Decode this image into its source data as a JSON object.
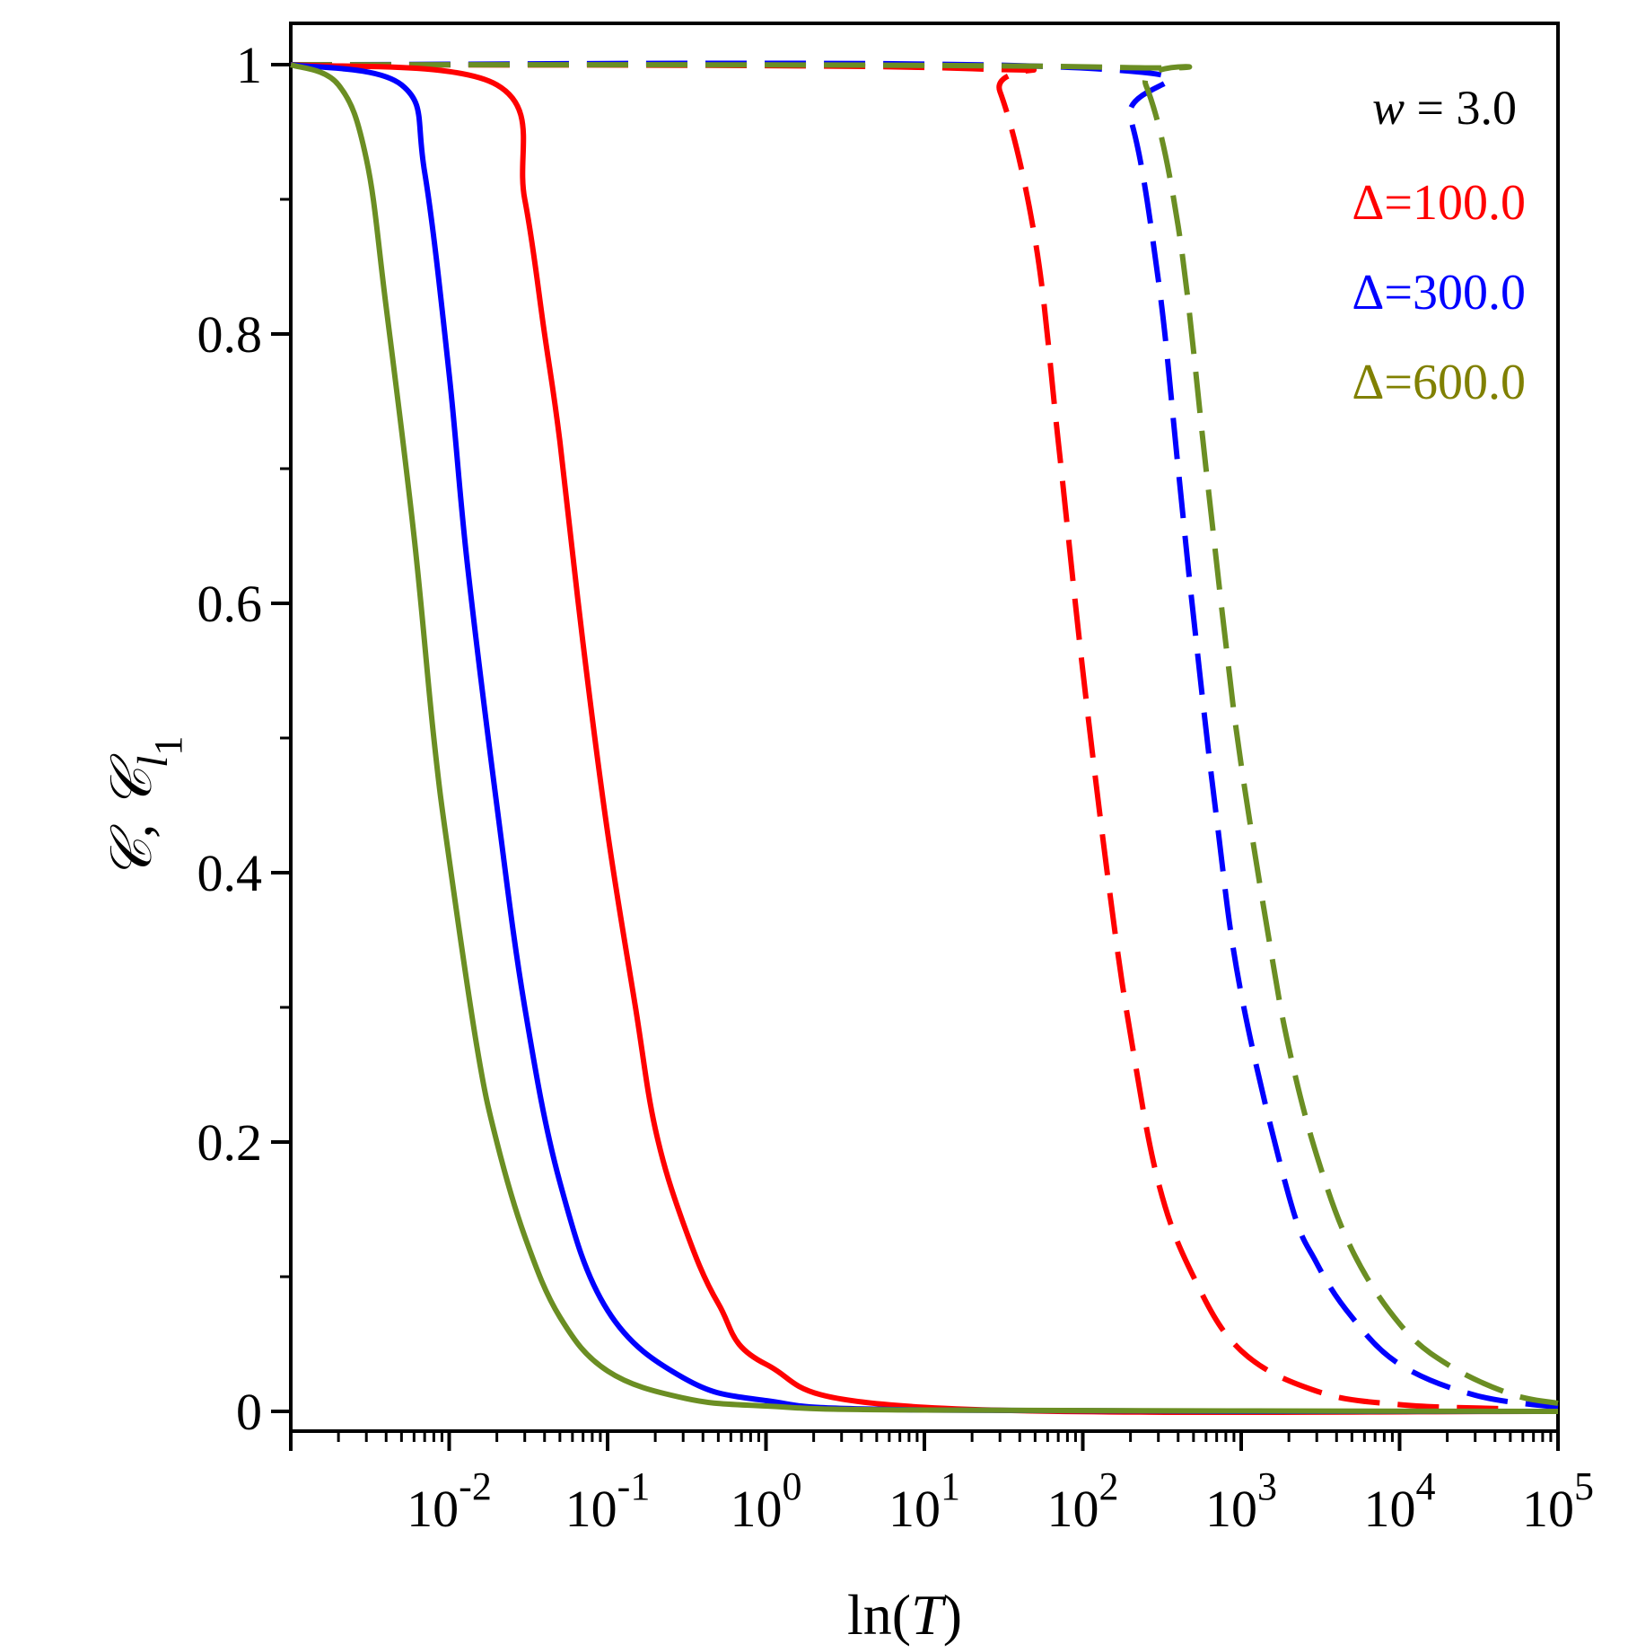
{
  "chart_data": {
    "type": "line",
    "title": "",
    "xlabel_prefix": "ln(",
    "xlabel_var": "T",
    "xlabel_suffix": ")",
    "ylabel_main": "𝒞, 𝒞",
    "ylabel_sub_l": "l",
    "ylabel_sub_1": "1",
    "xscale": "log",
    "xlim": [
      0.001,
      100000
    ],
    "ylim": [
      0,
      1
    ],
    "x_ticks": [
      {
        "base": "10",
        "exp": "-2",
        "value": 0.01
      },
      {
        "base": "10",
        "exp": "-1",
        "value": 0.1
      },
      {
        "base": "10",
        "exp": "0",
        "value": 1
      },
      {
        "base": "10",
        "exp": "1",
        "value": 10
      },
      {
        "base": "10",
        "exp": "2",
        "value": 100
      },
      {
        "base": "10",
        "exp": "3",
        "value": 1000
      },
      {
        "base": "10",
        "exp": "4",
        "value": 10000
      },
      {
        "base": "10",
        "exp": "5",
        "value": 100000
      }
    ],
    "y_ticks": [
      {
        "label": "0",
        "value": 0
      },
      {
        "label": "0.2",
        "value": 0.2
      },
      {
        "label": "0.4",
        "value": 0.4
      },
      {
        "label": "0.6",
        "value": 0.6
      },
      {
        "label": "0.8",
        "value": 0.8
      },
      {
        "label": "1",
        "value": 1
      }
    ],
    "y_minor_ticks": [
      0.1,
      0.3,
      0.5,
      0.7,
      0.9
    ],
    "annotation": {
      "var": "w",
      "eq": " = 3.0"
    },
    "legend_position": "top-right",
    "series": [
      {
        "name": "Δ=100.0",
        "curve": "𝒞",
        "color": "#ff0000",
        "style": "solid",
        "x": [
          0.001,
          0.02,
          0.03,
          0.04,
          0.05,
          0.07,
          0.1,
          0.15,
          0.2,
          0.3,
          0.5,
          1,
          10,
          100000
        ],
        "y": [
          1,
          0.985,
          0.9,
          0.8,
          0.72,
          0.57,
          0.43,
          0.3,
          0.21,
          0.14,
          0.08,
          0.035,
          0.003,
          0
        ]
      },
      {
        "name": "Δ=300.0",
        "curve": "𝒞",
        "color": "#0000ff",
        "style": "solid",
        "x": [
          0.001,
          0.005,
          0.007,
          0.01,
          0.013,
          0.02,
          0.03,
          0.05,
          0.1,
          0.3,
          1,
          10,
          100000
        ],
        "y": [
          1,
          0.985,
          0.92,
          0.77,
          0.63,
          0.45,
          0.3,
          0.17,
          0.075,
          0.025,
          0.008,
          0.001,
          0
        ]
      },
      {
        "name": "Δ=600.0",
        "curve": "𝒞",
        "color": "#6b8e23",
        "style": "solid",
        "x": [
          0.001,
          0.002,
          0.003,
          0.004,
          0.006,
          0.008,
          0.01,
          0.015,
          0.02,
          0.03,
          0.05,
          0.1,
          0.3,
          1,
          10,
          100000
        ],
        "y": [
          1,
          0.985,
          0.93,
          0.82,
          0.65,
          0.5,
          0.41,
          0.27,
          0.2,
          0.13,
          0.07,
          0.03,
          0.01,
          0.004,
          0.001,
          0
        ]
      },
      {
        "name": "Δ=100.0",
        "curve": "𝒞l1",
        "color": "#ff0000",
        "style": "dashed",
        "x": [
          0.001,
          20,
          30,
          50,
          70,
          100,
          150,
          200,
          300,
          500,
          1000,
          3000,
          10000,
          45000
        ],
        "y": [
          1,
          0.997,
          0.98,
          0.87,
          0.72,
          0.55,
          0.38,
          0.28,
          0.17,
          0.1,
          0.045,
          0.015,
          0.005,
          0.002
        ]
      },
      {
        "name": "Δ=300.0",
        "curve": "𝒞l1",
        "color": "#0000ff",
        "style": "dashed",
        "x": [
          0.001,
          120,
          200,
          300,
          400,
          500,
          700,
          1000,
          2000,
          3000,
          5000,
          10000,
          30000,
          100000
        ],
        "y": [
          1,
          0.997,
          0.96,
          0.84,
          0.7,
          0.59,
          0.44,
          0.31,
          0.16,
          0.11,
          0.07,
          0.035,
          0.012,
          0.003
        ]
      },
      {
        "name": "Δ=600.0",
        "curve": "𝒞l1",
        "color": "#6b8e23",
        "style": "dashed",
        "x": [
          0.001,
          160,
          250,
          400,
          600,
          800,
          1000,
          1500,
          2000,
          3000,
          5000,
          10000,
          20000,
          50000,
          100000
        ],
        "y": [
          1,
          0.998,
          0.985,
          0.88,
          0.7,
          0.57,
          0.48,
          0.35,
          0.27,
          0.19,
          0.12,
          0.065,
          0.035,
          0.013,
          0.006
        ]
      }
    ]
  }
}
